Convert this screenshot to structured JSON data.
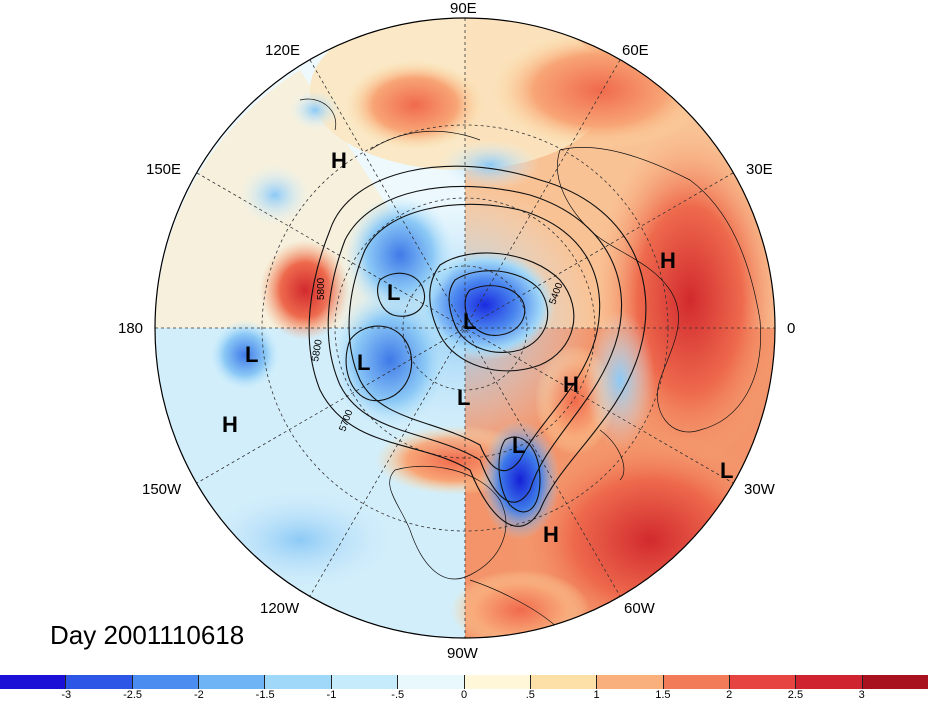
{
  "title": "Day 2001110618",
  "longitude_labels": {
    "n90e": "90E",
    "n120e": "120E",
    "n60e": "60E",
    "n150e": "150E",
    "n30e": "30E",
    "n180": "180",
    "n0": "0",
    "n150w": "150W",
    "n30w": "30W",
    "n120w": "120W",
    "n60w": "60W",
    "n90w": "90W"
  },
  "pressure_centers": {
    "high": "H",
    "low": "L"
  },
  "contour_labels": [
    "5800",
    "5800",
    "5700",
    "5400"
  ],
  "colorbar": {
    "ticks": [
      "-3",
      "-2.5",
      "-2",
      "-1.5",
      "-1",
      "-.5",
      "0",
      ".5",
      "1",
      "1.5",
      "2",
      "2.5",
      "3"
    ],
    "colors": [
      "#1a10d6",
      "#2d55e6",
      "#4a8cf0",
      "#6fb5f5",
      "#9fd8f8",
      "#c6ecfb",
      "#e9f8fd",
      "#fff7d8",
      "#fde0a8",
      "#f9b07d",
      "#f27c5a",
      "#e64440",
      "#cf2430",
      "#a8121f"
    ]
  }
}
